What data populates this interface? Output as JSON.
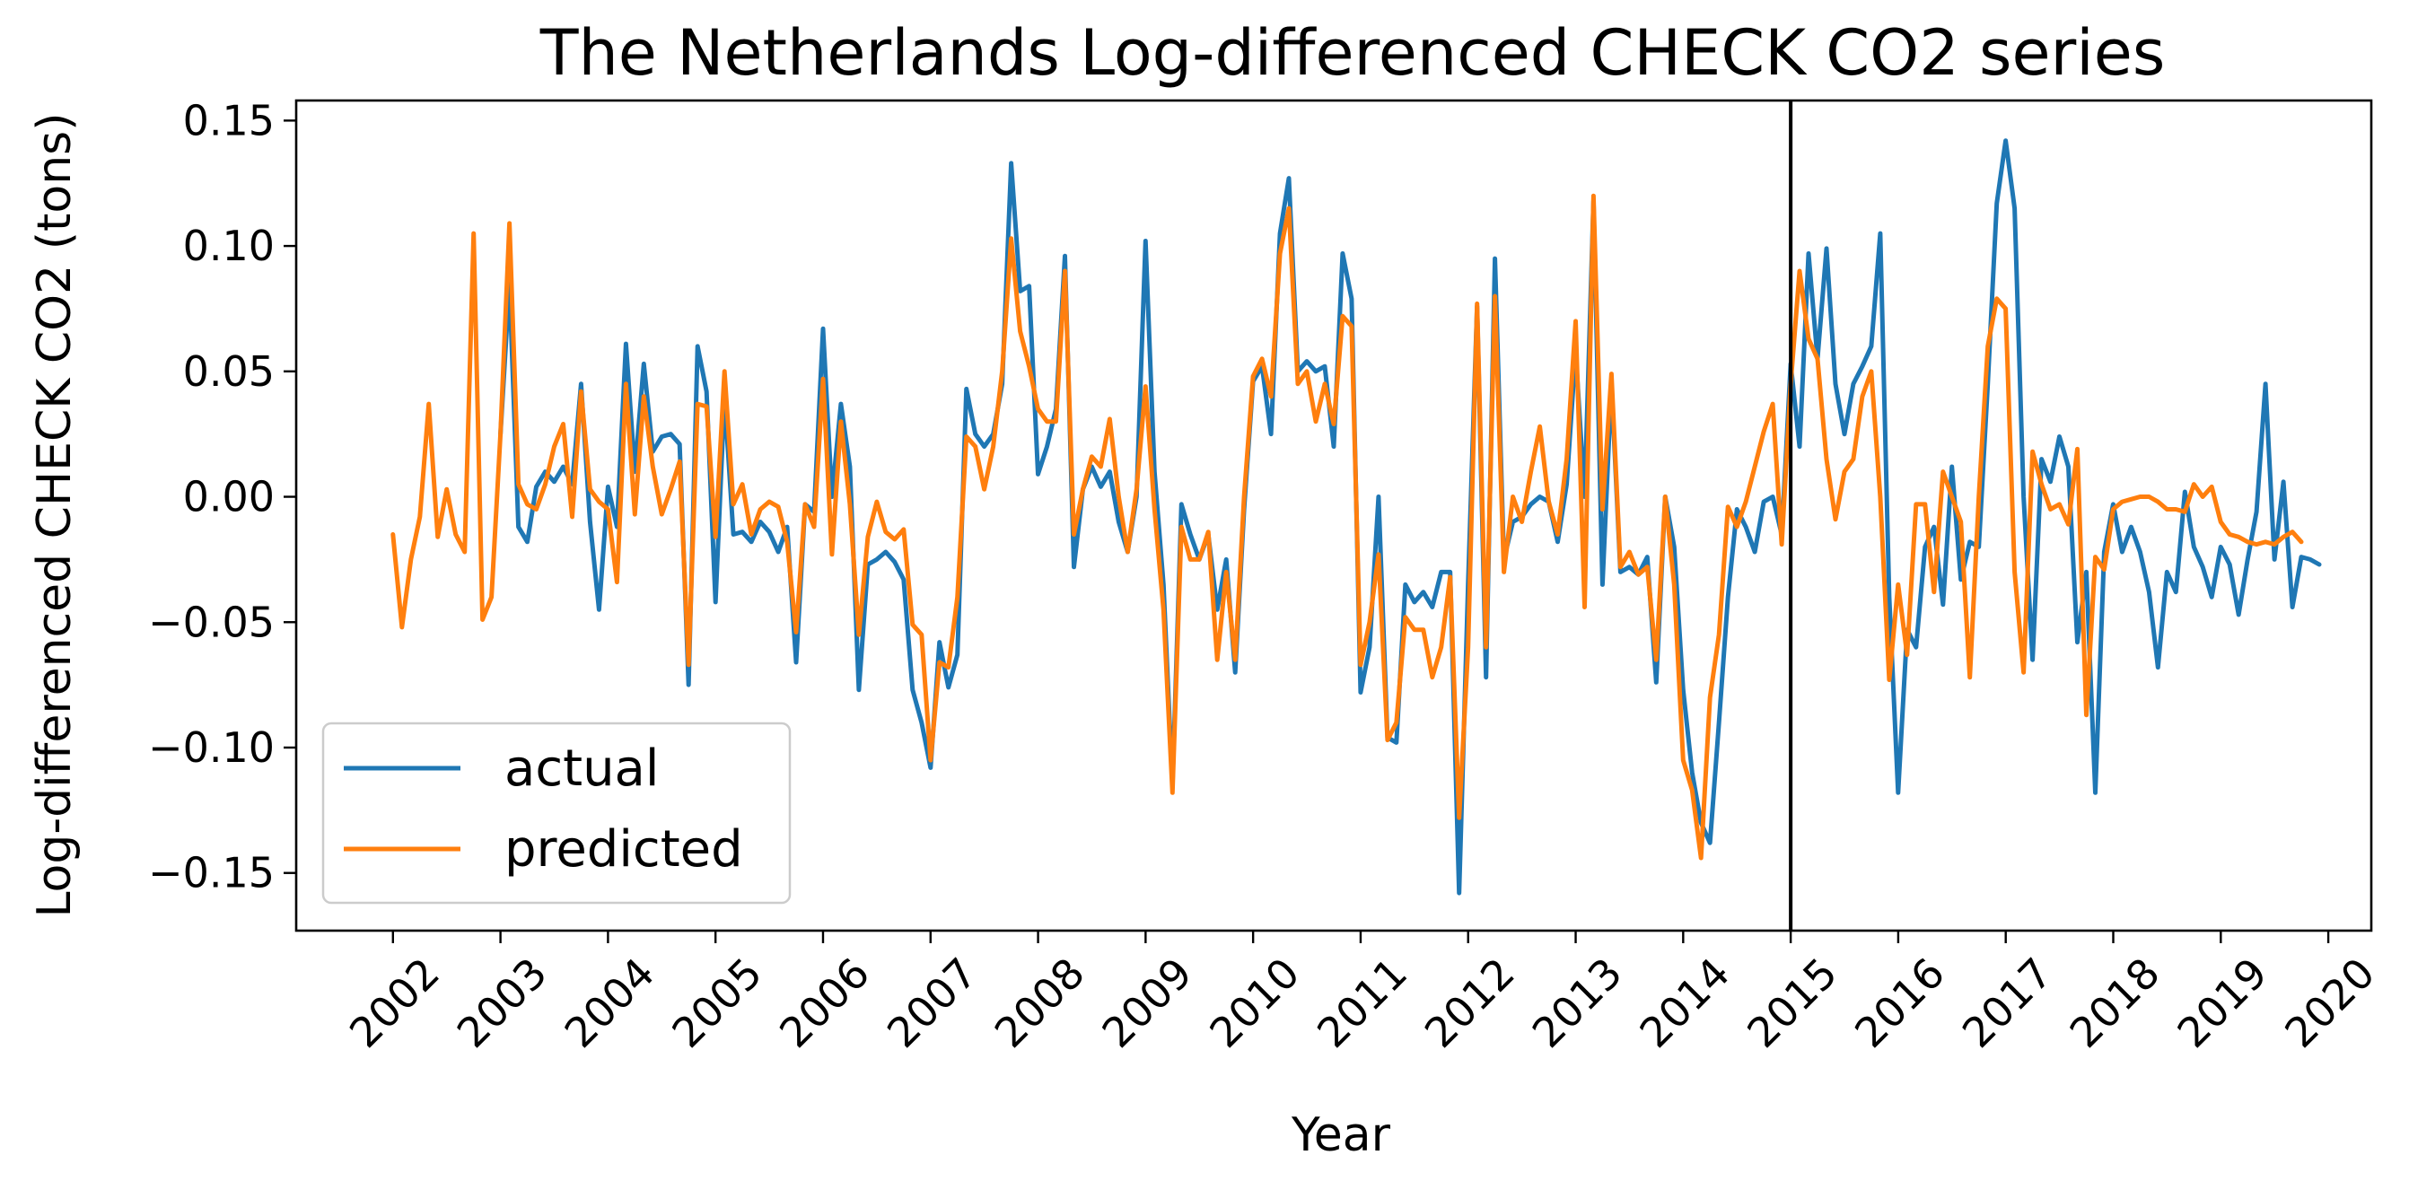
{
  "chart_data": {
    "type": "line",
    "title": "The Netherlands Log-differenced CHECK CO2 series",
    "xlabel": "Year",
    "ylabel": "Log-differenced CHECK CO2 (tons)",
    "xlim": [
      2001.1,
      2020.4
    ],
    "ylim": [
      -0.173,
      0.158
    ],
    "x_start": 2002.0,
    "x_step": 0.08333,
    "xticks": [
      "2002",
      "2003",
      "2004",
      "2005",
      "2006",
      "2007",
      "2008",
      "2009",
      "2010",
      "2011",
      "2012",
      "2013",
      "2014",
      "2015",
      "2016",
      "2017",
      "2018",
      "2019",
      "2020"
    ],
    "yticks": [
      0.15,
      0.1,
      0.05,
      0.0,
      -0.05,
      -0.1,
      -0.15
    ],
    "ytick_labels": [
      "0.15",
      "0.10",
      "0.05",
      "0.00",
      "−0.05",
      "−0.10",
      "−0.15"
    ],
    "split_line_x": 2015.0,
    "grid": false,
    "legend_position": "lower-left",
    "series": [
      {
        "name": "actual",
        "color": "#1f77b4",
        "start_index": 12,
        "values": [
          0.025,
          0.085,
          -0.012,
          -0.018,
          0.004,
          0.01,
          0.006,
          0.012,
          0.005,
          0.045,
          -0.01,
          -0.045,
          0.004,
          -0.012,
          0.061,
          0.01,
          0.053,
          0.018,
          0.024,
          0.025,
          0.021,
          -0.075,
          0.06,
          0.042,
          -0.042,
          0.04,
          -0.015,
          -0.014,
          -0.018,
          -0.01,
          -0.014,
          -0.022,
          -0.012,
          -0.066,
          -0.003,
          -0.006,
          0.067,
          0.0,
          0.037,
          0.012,
          -0.077,
          -0.027,
          -0.025,
          -0.022,
          -0.026,
          -0.033,
          -0.077,
          -0.09,
          -0.108,
          -0.058,
          -0.076,
          -0.063,
          0.043,
          0.025,
          0.02,
          0.025,
          0.045,
          0.133,
          0.082,
          0.084,
          0.009,
          0.02,
          0.035,
          0.096,
          -0.028,
          0.003,
          0.012,
          0.004,
          0.01,
          -0.01,
          -0.022,
          0.0,
          0.102,
          0.01,
          -0.035,
          -0.115,
          -0.003,
          -0.015,
          -0.025,
          -0.015,
          -0.045,
          -0.025,
          -0.07,
          -0.005,
          0.046,
          0.052,
          0.025,
          0.105,
          0.127,
          0.05,
          0.054,
          0.05,
          0.052,
          0.02,
          0.097,
          0.079,
          -0.078,
          -0.06,
          -0.0,
          -0.096,
          -0.098,
          -0.035,
          -0.042,
          -0.038,
          -0.044,
          -0.03,
          -0.03,
          -0.158,
          -0.035,
          0.076,
          -0.072,
          0.095,
          -0.025,
          -0.01,
          -0.008,
          -0.003,
          0.0,
          -0.002,
          -0.018,
          0.005,
          0.058,
          0.0,
          0.118,
          -0.035,
          0.045,
          -0.03,
          -0.028,
          -0.031,
          -0.024,
          -0.074,
          0.0,
          -0.02,
          -0.077,
          -0.11,
          -0.13,
          -0.138,
          -0.09,
          -0.04,
          -0.005,
          -0.012,
          -0.022,
          -0.002,
          0.0,
          -0.015,
          0.053,
          0.02,
          0.097,
          0.055,
          0.099,
          0.045,
          0.025,
          0.045,
          0.052,
          0.06,
          0.105,
          -0.04,
          -0.118,
          -0.053,
          -0.06,
          -0.02,
          -0.012,
          -0.043,
          0.012,
          -0.033,
          -0.018,
          -0.02,
          0.045,
          0.117,
          0.142,
          0.115,
          0.0,
          -0.065,
          0.015,
          0.006,
          0.024,
          0.012,
          -0.058,
          -0.03,
          -0.118,
          -0.022,
          -0.003,
          -0.022,
          -0.012,
          -0.022,
          -0.038,
          -0.068,
          -0.03,
          -0.038,
          0.002,
          -0.02,
          -0.028,
          -0.04,
          -0.02,
          -0.027,
          -0.047,
          -0.025,
          -0.006,
          0.045,
          -0.025,
          0.006,
          -0.044,
          -0.024,
          -0.025,
          -0.027
        ]
      },
      {
        "name": "predicted",
        "color": "#ff7f0e",
        "start_index": 0,
        "values": [
          -0.015,
          -0.052,
          -0.025,
          -0.008,
          0.037,
          -0.016,
          0.003,
          -0.015,
          -0.022,
          0.105,
          -0.049,
          -0.04,
          0.025,
          0.109,
          0.005,
          -0.003,
          -0.005,
          0.005,
          0.02,
          0.029,
          -0.008,
          0.042,
          0.003,
          -0.002,
          -0.005,
          -0.034,
          0.045,
          -0.007,
          0.04,
          0.012,
          -0.007,
          0.003,
          0.014,
          -0.067,
          0.037,
          0.036,
          -0.016,
          0.05,
          -0.003,
          0.005,
          -0.015,
          -0.005,
          -0.002,
          -0.004,
          -0.018,
          -0.054,
          -0.003,
          -0.012,
          0.047,
          -0.023,
          0.03,
          -0.003,
          -0.055,
          -0.016,
          -0.002,
          -0.014,
          -0.017,
          -0.013,
          -0.051,
          -0.055,
          -0.105,
          -0.066,
          -0.068,
          -0.04,
          0.024,
          0.02,
          0.003,
          0.02,
          0.05,
          0.103,
          0.066,
          0.052,
          0.035,
          0.03,
          0.03,
          0.09,
          -0.015,
          0.003,
          0.016,
          0.012,
          0.031,
          0.0,
          -0.022,
          0.003,
          0.044,
          -0.005,
          -0.045,
          -0.118,
          -0.012,
          -0.025,
          -0.025,
          -0.014,
          -0.065,
          -0.03,
          -0.065,
          0.0,
          0.048,
          0.055,
          0.04,
          0.097,
          0.115,
          0.045,
          0.05,
          0.03,
          0.045,
          0.029,
          0.072,
          0.068,
          -0.067,
          -0.05,
          -0.023,
          -0.097,
          -0.09,
          -0.048,
          -0.053,
          -0.053,
          -0.072,
          -0.06,
          -0.032,
          -0.128,
          -0.06,
          0.077,
          -0.06,
          0.08,
          -0.03,
          0.0,
          -0.01,
          0.01,
          0.028,
          -0.002,
          -0.015,
          0.015,
          0.07,
          -0.044,
          0.12,
          -0.005,
          0.049,
          -0.028,
          -0.022,
          -0.031,
          -0.028,
          -0.065,
          0.0,
          -0.035,
          -0.105,
          -0.117,
          -0.144,
          -0.08,
          -0.055,
          -0.004,
          -0.012,
          -0.002,
          0.012,
          0.026,
          0.037,
          -0.019,
          0.045,
          0.09,
          0.063,
          0.055,
          0.015,
          -0.009,
          0.01,
          0.015,
          0.04,
          0.05,
          0.0,
          -0.073,
          -0.035,
          -0.063,
          -0.003,
          -0.003,
          -0.038,
          0.01,
          0.0,
          -0.01,
          -0.072,
          0.0,
          0.06,
          0.079,
          0.075,
          -0.03,
          -0.07,
          0.018,
          0.005,
          -0.005,
          -0.003,
          -0.011,
          0.019,
          -0.087,
          -0.024,
          -0.029,
          -0.005,
          -0.002,
          -0.001,
          0.0,
          0.0,
          -0.002,
          -0.005,
          -0.005,
          -0.006,
          0.005,
          0.0,
          0.004,
          -0.01,
          -0.015,
          -0.016,
          -0.018,
          -0.019,
          -0.018,
          -0.019,
          -0.016,
          -0.014,
          -0.018
        ]
      }
    ]
  }
}
